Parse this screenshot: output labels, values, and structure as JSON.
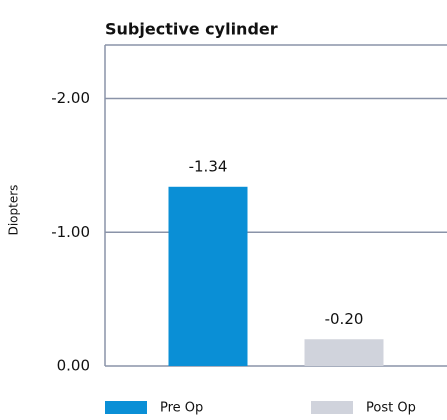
{
  "chart_data": {
    "type": "bar",
    "title": "Subjective cylinder",
    "y_label": "Diopters",
    "categories": [
      null
    ],
    "series": [
      {
        "name": "Pre Op",
        "color": "#0a8fd6",
        "values": [
          -1.34
        ],
        "value_labels": [
          "-1.34"
        ]
      },
      {
        "name": "Post Op",
        "color": "#d0d3dc",
        "values": [
          -0.2
        ],
        "value_labels": [
          "-0.20"
        ]
      }
    ],
    "ylim": [
      0,
      -2.4
    ],
    "yticks": [
      {
        "value": 0,
        "label": "0.00"
      },
      {
        "value": -1,
        "label": "-1.00"
      },
      {
        "value": -2,
        "label": "-2.00"
      }
    ],
    "grid": true,
    "legend": "bottom"
  }
}
